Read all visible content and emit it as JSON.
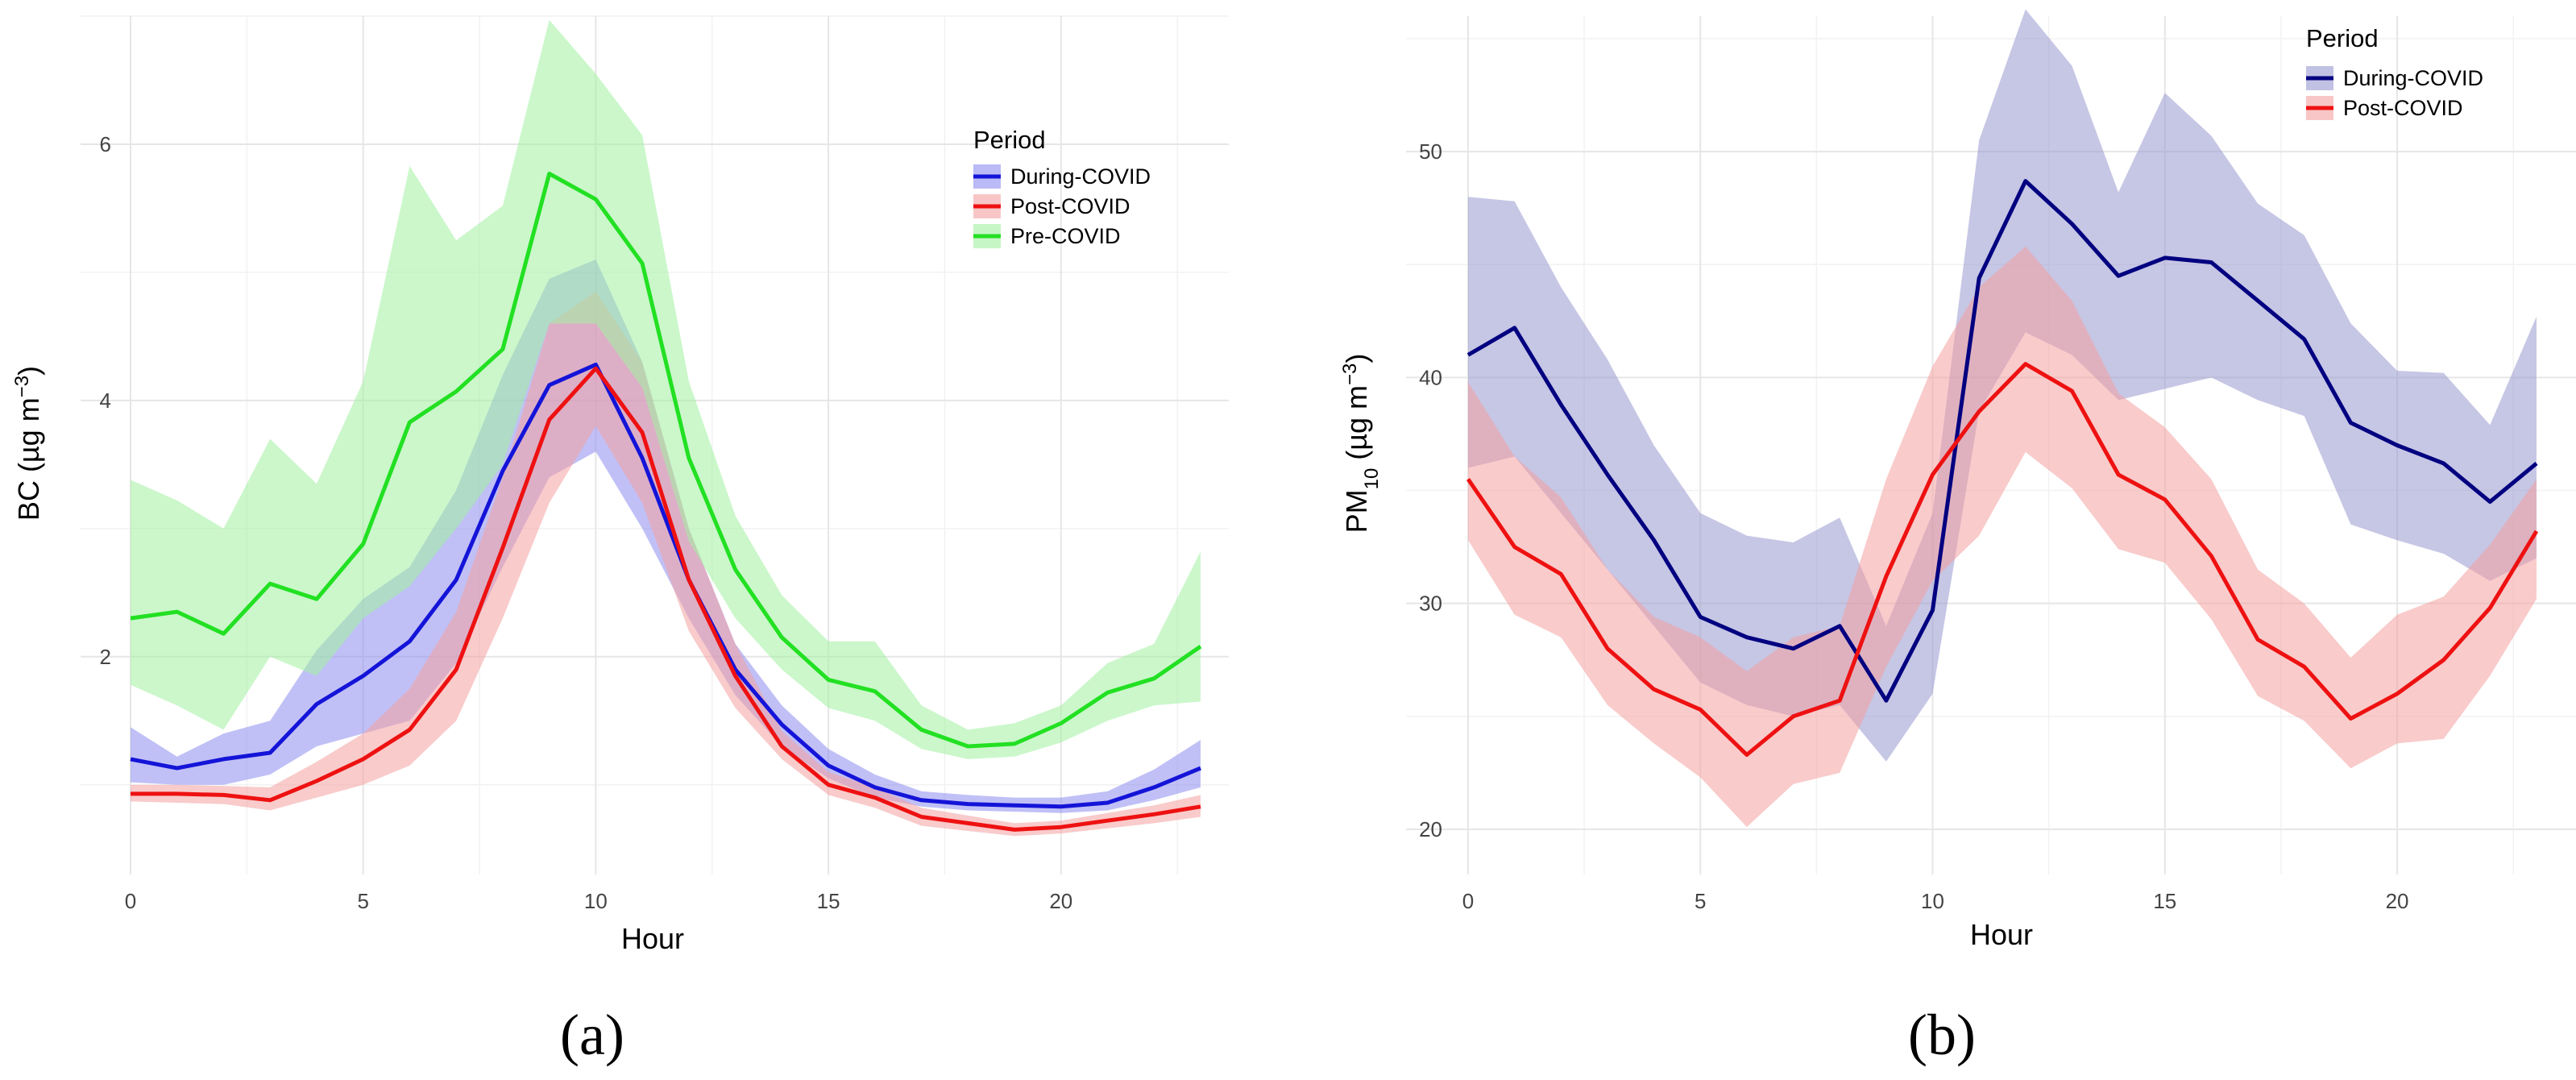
{
  "chart_data": [
    {
      "panel": "(a)",
      "type": "line",
      "xlabel": "Hour",
      "ylabel": "BC (µg m⁻³)",
      "ylabel_parts": {
        "main": "BC (µg m",
        "sup": "−3",
        "end": ")"
      },
      "xlim": [
        0,
        23
      ],
      "ylim": [
        0.3,
        7.0
      ],
      "xticks": [
        0,
        5,
        10,
        15,
        20
      ],
      "yticks": [
        2,
        4,
        6
      ],
      "legend_title": "Period",
      "legend_position": "top-right",
      "x": [
        0,
        1,
        2,
        3,
        4,
        5,
        6,
        7,
        8,
        9,
        10,
        11,
        12,
        13,
        14,
        15,
        16,
        17,
        18,
        19,
        20,
        21,
        22,
        23
      ],
      "series": [
        {
          "name": "During-COVID",
          "color": "#1414d8",
          "fill": "#8c8cf0",
          "values": [
            1.2,
            1.13,
            1.2,
            1.25,
            1.63,
            1.85,
            2.12,
            2.6,
            3.45,
            4.12,
            4.28,
            3.55,
            2.6,
            1.9,
            1.47,
            1.15,
            0.98,
            0.88,
            0.85,
            0.84,
            0.83,
            0.86,
            0.98,
            1.13
          ],
          "lower": [
            1.02,
            1.0,
            1.0,
            1.08,
            1.3,
            1.4,
            1.5,
            1.95,
            2.7,
            3.4,
            3.6,
            3.0,
            2.3,
            1.7,
            1.3,
            1.05,
            0.9,
            0.83,
            0.8,
            0.79,
            0.78,
            0.8,
            0.88,
            0.98
          ],
          "upper": [
            1.45,
            1.22,
            1.4,
            1.5,
            2.05,
            2.45,
            2.7,
            3.3,
            4.2,
            4.95,
            5.1,
            4.3,
            3.0,
            2.1,
            1.62,
            1.28,
            1.08,
            0.95,
            0.92,
            0.9,
            0.9,
            0.95,
            1.12,
            1.35
          ]
        },
        {
          "name": "Post-COVID",
          "color": "#ee1111",
          "fill": "#f4a0a0",
          "values": [
            0.93,
            0.93,
            0.92,
            0.88,
            1.03,
            1.2,
            1.43,
            1.9,
            2.85,
            3.85,
            4.25,
            3.75,
            2.6,
            1.85,
            1.3,
            1.0,
            0.9,
            0.75,
            0.7,
            0.65,
            0.67,
            0.72,
            0.77,
            0.83
          ],
          "lower": [
            0.87,
            0.86,
            0.85,
            0.8,
            0.9,
            1.0,
            1.15,
            1.5,
            2.3,
            3.2,
            3.8,
            3.2,
            2.2,
            1.6,
            1.2,
            0.92,
            0.82,
            0.68,
            0.64,
            0.6,
            0.62,
            0.66,
            0.7,
            0.75
          ],
          "upper": [
            1.0,
            1.0,
            0.99,
            0.98,
            1.18,
            1.4,
            1.75,
            2.35,
            3.4,
            4.6,
            4.85,
            4.3,
            3.0,
            2.1,
            1.42,
            1.1,
            0.98,
            0.82,
            0.76,
            0.7,
            0.72,
            0.78,
            0.84,
            0.92
          ]
        },
        {
          "name": "Pre-COVID",
          "color": "#22e022",
          "fill": "#a0f0a0",
          "values": [
            2.3,
            2.35,
            2.18,
            2.57,
            2.45,
            2.88,
            3.83,
            4.07,
            4.4,
            5.77,
            5.57,
            5.07,
            3.55,
            2.68,
            2.15,
            1.82,
            1.73,
            1.43,
            1.3,
            1.32,
            1.48,
            1.72,
            1.83,
            2.08
          ],
          "lower": [
            1.78,
            1.62,
            1.43,
            2.0,
            1.85,
            2.3,
            2.55,
            3.0,
            3.5,
            4.6,
            4.6,
            4.1,
            2.9,
            2.3,
            1.9,
            1.6,
            1.5,
            1.28,
            1.2,
            1.22,
            1.33,
            1.5,
            1.62,
            1.65
          ],
          "upper": [
            3.38,
            3.22,
            3.0,
            3.7,
            3.35,
            4.15,
            5.83,
            5.25,
            5.52,
            6.97,
            6.55,
            6.07,
            4.15,
            3.1,
            2.48,
            2.12,
            2.12,
            1.62,
            1.43,
            1.48,
            1.62,
            1.95,
            2.1,
            2.82
          ]
        }
      ]
    },
    {
      "panel": "(b)",
      "type": "line",
      "xlabel": "Hour",
      "ylabel": "PM₁₀ (µg m⁻³)",
      "ylabel_parts": {
        "main": "PM",
        "sub": "10",
        "mid": " (µg m",
        "sup": "−3",
        "end": ")"
      },
      "xlim": [
        0,
        23
      ],
      "ylim": [
        18,
        56
      ],
      "xticks": [
        0,
        5,
        10,
        15,
        20
      ],
      "yticks": [
        20,
        30,
        40,
        50
      ],
      "legend_title": "Period",
      "legend_position": "top-right",
      "x": [
        0,
        1,
        2,
        3,
        4,
        5,
        6,
        7,
        8,
        9,
        10,
        11,
        12,
        13,
        14,
        15,
        16,
        17,
        18,
        19,
        20,
        21,
        22,
        23
      ],
      "series": [
        {
          "name": "During-COVID",
          "color": "#000080",
          "fill": "#9898d0",
          "values": [
            41.0,
            42.2,
            38.8,
            35.7,
            32.8,
            29.4,
            28.5,
            28.0,
            29.0,
            25.7,
            29.7,
            44.4,
            48.7,
            46.8,
            44.5,
            45.3,
            45.1,
            43.4,
            41.7,
            38.0,
            37.0,
            36.2,
            34.5,
            36.2
          ],
          "lower": [
            36.0,
            36.5,
            34.0,
            31.5,
            29.0,
            26.5,
            25.5,
            25.0,
            25.5,
            23.0,
            26.0,
            38.5,
            42.0,
            41.0,
            39.0,
            39.5,
            40.0,
            39.0,
            38.3,
            33.5,
            32.8,
            32.2,
            31.0,
            32.0
          ],
          "upper": [
            48.0,
            47.8,
            44.0,
            40.8,
            37.0,
            34.0,
            33.0,
            32.7,
            33.8,
            29.0,
            34.0,
            50.5,
            56.3,
            53.8,
            48.2,
            52.6,
            50.7,
            47.7,
            46.3,
            42.4,
            40.3,
            40.2,
            37.9,
            42.7
          ]
        },
        {
          "name": "Post-COVID",
          "color": "#ee1111",
          "fill": "#f4a0a0",
          "values": [
            35.5,
            32.5,
            31.3,
            28.0,
            26.2,
            25.3,
            23.3,
            25.0,
            25.7,
            31.2,
            35.7,
            38.5,
            40.6,
            39.4,
            35.7,
            34.6,
            32.1,
            28.4,
            27.2,
            24.9,
            26.0,
            27.5,
            29.8,
            33.2
          ],
          "lower": [
            32.8,
            29.5,
            28.5,
            25.5,
            23.8,
            22.3,
            20.1,
            22.0,
            22.5,
            27.2,
            31.0,
            33.0,
            36.7,
            35.1,
            32.4,
            31.8,
            29.3,
            25.9,
            24.8,
            22.7,
            23.8,
            24.0,
            26.8,
            30.2
          ],
          "upper": [
            39.8,
            36.5,
            34.7,
            31.5,
            29.4,
            28.5,
            27.0,
            28.5,
            29.0,
            35.5,
            40.5,
            44.0,
            45.8,
            43.4,
            39.3,
            37.8,
            35.5,
            31.5,
            30.0,
            27.6,
            29.5,
            30.3,
            32.6,
            35.5
          ]
        }
      ]
    }
  ]
}
